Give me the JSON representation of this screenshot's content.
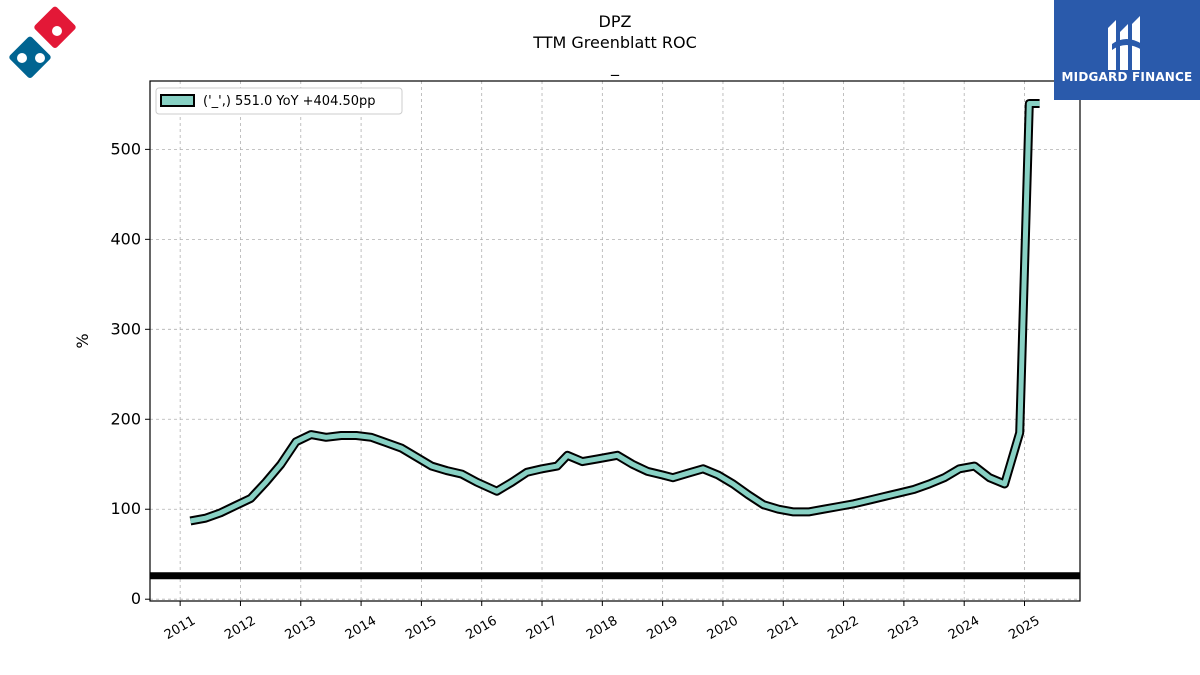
{
  "chart_data": {
    "type": "line",
    "title": "DPZ",
    "subtitle": "TTM Greenblatt ROC",
    "subtitle2": "_",
    "ylabel": "%",
    "xlabel": "",
    "xlim": [
      2010.5,
      2025.92
    ],
    "ylim": [
      -2,
      576
    ],
    "yticks": [
      0,
      100,
      200,
      300,
      400,
      500
    ],
    "ytick_labels": [
      "0",
      "100",
      "200",
      "300",
      "400",
      "500"
    ],
    "xticks": [
      2011,
      2012,
      2013,
      2014,
      2015,
      2016,
      2017,
      2018,
      2019,
      2020,
      2021,
      2022,
      2023,
      2024,
      2025
    ],
    "xtick_labels": [
      "2011",
      "2012",
      "2013",
      "2014",
      "2015",
      "2016",
      "2017",
      "2018",
      "2019",
      "2020",
      "2021",
      "2022",
      "2023",
      "2024",
      "2025"
    ],
    "grid": true,
    "legend_position": "top-left",
    "reference_line": {
      "y": 26
    },
    "series": [
      {
        "name": "('_',) 551.0 YoY +404.50pp",
        "color": "#88d1c4",
        "x": [
          2011.17,
          2011.42,
          2011.67,
          2011.92,
          2012.17,
          2012.42,
          2012.67,
          2012.92,
          2013.17,
          2013.42,
          2013.67,
          2013.92,
          2014.17,
          2014.42,
          2014.67,
          2014.92,
          2015.17,
          2015.42,
          2015.67,
          2015.92,
          2016.25,
          2016.5,
          2016.75,
          2017.0,
          2017.25,
          2017.42,
          2017.67,
          2017.92,
          2018.25,
          2018.5,
          2018.75,
          2019.0,
          2019.17,
          2019.42,
          2019.67,
          2019.92,
          2020.17,
          2020.42,
          2020.67,
          2020.92,
          2021.17,
          2021.42,
          2021.67,
          2021.92,
          2022.17,
          2022.42,
          2022.67,
          2022.92,
          2023.17,
          2023.42,
          2023.67,
          2023.92,
          2024.17,
          2024.42,
          2024.67,
          2024.92,
          2025.08,
          2025.25
        ],
        "values": [
          87,
          90,
          96,
          104,
          112,
          130,
          150,
          175,
          183,
          180,
          182,
          182,
          180,
          174,
          168,
          158,
          148,
          143,
          139,
          130,
          120,
          130,
          141,
          145,
          148,
          160,
          153,
          156,
          160,
          150,
          142,
          138,
          135,
          140,
          145,
          138,
          128,
          116,
          105,
          100,
          97,
          97,
          100,
          103,
          106,
          110,
          114,
          118,
          122,
          128,
          135,
          145,
          148,
          135,
          128,
          185,
          551,
          551
        ]
      }
    ]
  },
  "branding": {
    "company_logo_icon": "dominos-domino-logo",
    "watermark_name": "MIDGARD FINANCE",
    "watermark_bg": "#2a5aab"
  }
}
